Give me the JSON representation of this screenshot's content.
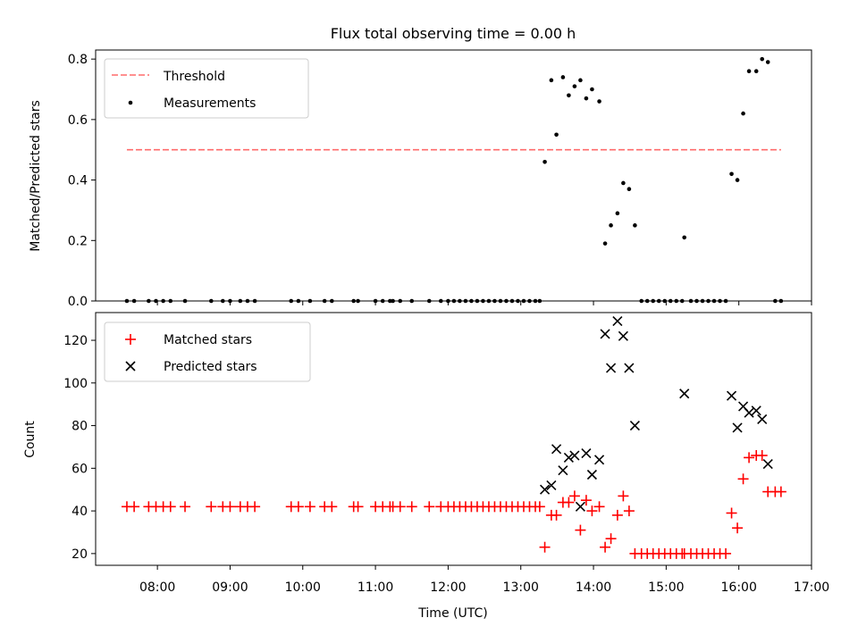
{
  "chart_data": [
    {
      "type": "scatter",
      "title": "Flux total observing time = 0.00 h",
      "xlabel": "",
      "ylabel": "Matched/Predicted stars",
      "xlim": [
        7.15,
        17.0
      ],
      "ylim": [
        0.0,
        0.83
      ],
      "yticks": [
        0.0,
        0.2,
        0.4,
        0.6,
        0.8
      ],
      "ytick_labels": [
        "0.0",
        "0.2",
        "0.4",
        "0.6",
        "0.8"
      ],
      "legend": {
        "position": "upper-left",
        "entries": [
          "Threshold",
          "Measurements"
        ]
      },
      "threshold": {
        "name": "Threshold",
        "value": 0.5,
        "x_start": 7.58,
        "x_end": 16.58,
        "color": "#ff6b6b"
      },
      "measurements": {
        "name": "Measurements",
        "color": "#000000",
        "x": [
          7.58,
          7.68,
          7.88,
          7.98,
          8.08,
          8.18,
          8.38,
          8.74,
          8.9,
          9.0,
          9.14,
          9.24,
          9.34,
          9.84,
          9.94,
          10.1,
          10.3,
          10.4,
          10.7,
          10.76,
          11.0,
          11.1,
          11.2,
          11.24,
          11.34,
          11.5,
          11.74,
          11.9,
          12.0,
          12.08,
          12.16,
          12.24,
          12.32,
          12.4,
          12.48,
          12.56,
          12.64,
          12.72,
          12.8,
          12.88,
          12.96,
          13.04,
          13.12,
          13.2,
          13.26,
          13.33,
          13.42,
          13.49,
          13.58,
          13.66,
          13.74,
          13.82,
          13.9,
          13.98,
          14.08,
          14.16,
          14.24,
          14.33,
          14.41,
          14.49,
          14.57,
          14.66,
          14.74,
          14.82,
          14.9,
          14.98,
          15.06,
          15.14,
          15.22,
          15.25,
          15.34,
          15.42,
          15.5,
          15.58,
          15.66,
          15.74,
          15.82,
          15.9,
          15.98,
          16.06,
          16.14,
          16.24,
          16.32,
          16.4,
          16.5,
          16.58
        ],
        "y": [
          0,
          0,
          0,
          0,
          0,
          0,
          0,
          0,
          0,
          0,
          0,
          0,
          0,
          0,
          0,
          0,
          0,
          0,
          0,
          0,
          0,
          0,
          0,
          0,
          0,
          0,
          0,
          0,
          0,
          0,
          0,
          0,
          0,
          0,
          0,
          0,
          0,
          0,
          0,
          0,
          0,
          0,
          0,
          0,
          0,
          0.46,
          0.73,
          0.55,
          0.74,
          0.68,
          0.71,
          0.73,
          0.67,
          0.7,
          0.66,
          0.19,
          0.25,
          0.29,
          0.39,
          0.37,
          0.25,
          0,
          0,
          0,
          0,
          0,
          0,
          0,
          0,
          0.21,
          0,
          0,
          0,
          0,
          0,
          0,
          0,
          0.42,
          0.4,
          0.62,
          0.76,
          0.76,
          0.8,
          0.79,
          0,
          0
        ]
      }
    },
    {
      "type": "scatter",
      "title": "",
      "xlabel": "Time (UTC)",
      "ylabel": "Count",
      "xlim": [
        7.15,
        17.0
      ],
      "ylim": [
        14.5,
        133
      ],
      "yticks": [
        20,
        40,
        60,
        80,
        100,
        120
      ],
      "ytick_labels": [
        "20",
        "40",
        "60",
        "80",
        "100",
        "120"
      ],
      "xticks": [
        8,
        9,
        10,
        11,
        12,
        13,
        14,
        15,
        16,
        17
      ],
      "xtick_labels": [
        "08:00",
        "09:00",
        "10:00",
        "11:00",
        "12:00",
        "13:00",
        "14:00",
        "15:00",
        "16:00",
        "17:00"
      ],
      "legend": {
        "position": "upper-left",
        "entries": [
          "Matched stars",
          "Predicted stars"
        ]
      },
      "series": [
        {
          "name": "Matched stars",
          "marker": "plus",
          "color": "#ff0000",
          "x": [
            7.58,
            7.68,
            7.88,
            7.98,
            8.08,
            8.18,
            8.38,
            8.74,
            8.9,
            9.0,
            9.14,
            9.24,
            9.34,
            9.84,
            9.94,
            10.1,
            10.3,
            10.4,
            10.7,
            10.76,
            11.0,
            11.1,
            11.2,
            11.24,
            11.34,
            11.5,
            11.74,
            11.9,
            12.0,
            12.08,
            12.16,
            12.24,
            12.32,
            12.4,
            12.48,
            12.56,
            12.64,
            12.72,
            12.8,
            12.88,
            12.96,
            13.04,
            13.12,
            13.2,
            13.26,
            13.33,
            13.42,
            13.49,
            13.58,
            13.66,
            13.74,
            13.82,
            13.9,
            13.98,
            14.08,
            14.16,
            14.24,
            14.33,
            14.41,
            14.49,
            14.57,
            14.66,
            14.74,
            14.82,
            14.9,
            14.98,
            15.06,
            15.14,
            15.22,
            15.25,
            15.34,
            15.42,
            15.5,
            15.58,
            15.66,
            15.74,
            15.82,
            15.9,
            15.98,
            16.06,
            16.14,
            16.24,
            16.32,
            16.4,
            16.5,
            16.58
          ],
          "y": [
            42,
            42,
            42,
            42,
            42,
            42,
            42,
            42,
            42,
            42,
            42,
            42,
            42,
            42,
            42,
            42,
            42,
            42,
            42,
            42,
            42,
            42,
            42,
            42,
            42,
            42,
            42,
            42,
            42,
            42,
            42,
            42,
            42,
            42,
            42,
            42,
            42,
            42,
            42,
            42,
            42,
            42,
            42,
            42,
            42,
            23,
            38,
            38,
            44,
            44,
            47,
            31,
            45,
            40,
            42,
            23,
            27,
            38,
            47,
            40,
            20,
            20,
            20,
            20,
            20,
            20,
            20,
            20,
            20,
            20,
            20,
            20,
            20,
            20,
            20,
            20,
            20,
            39,
            32,
            55,
            65,
            66,
            66,
            49,
            49,
            49
          ]
        },
        {
          "name": "Predicted stars",
          "marker": "x",
          "color": "#000000",
          "x": [
            13.33,
            13.42,
            13.49,
            13.58,
            13.66,
            13.74,
            13.82,
            13.9,
            13.98,
            14.08,
            14.16,
            14.24,
            14.33,
            14.41,
            14.49,
            14.57,
            15.25,
            15.9,
            15.98,
            16.06,
            16.14,
            16.24,
            16.32,
            16.4
          ],
          "y": [
            50,
            52,
            69,
            59,
            65,
            66,
            42,
            67,
            57,
            64,
            123,
            107,
            129,
            122,
            107,
            80,
            95,
            94,
            79,
            89,
            86,
            87,
            83,
            62
          ]
        }
      ]
    }
  ]
}
